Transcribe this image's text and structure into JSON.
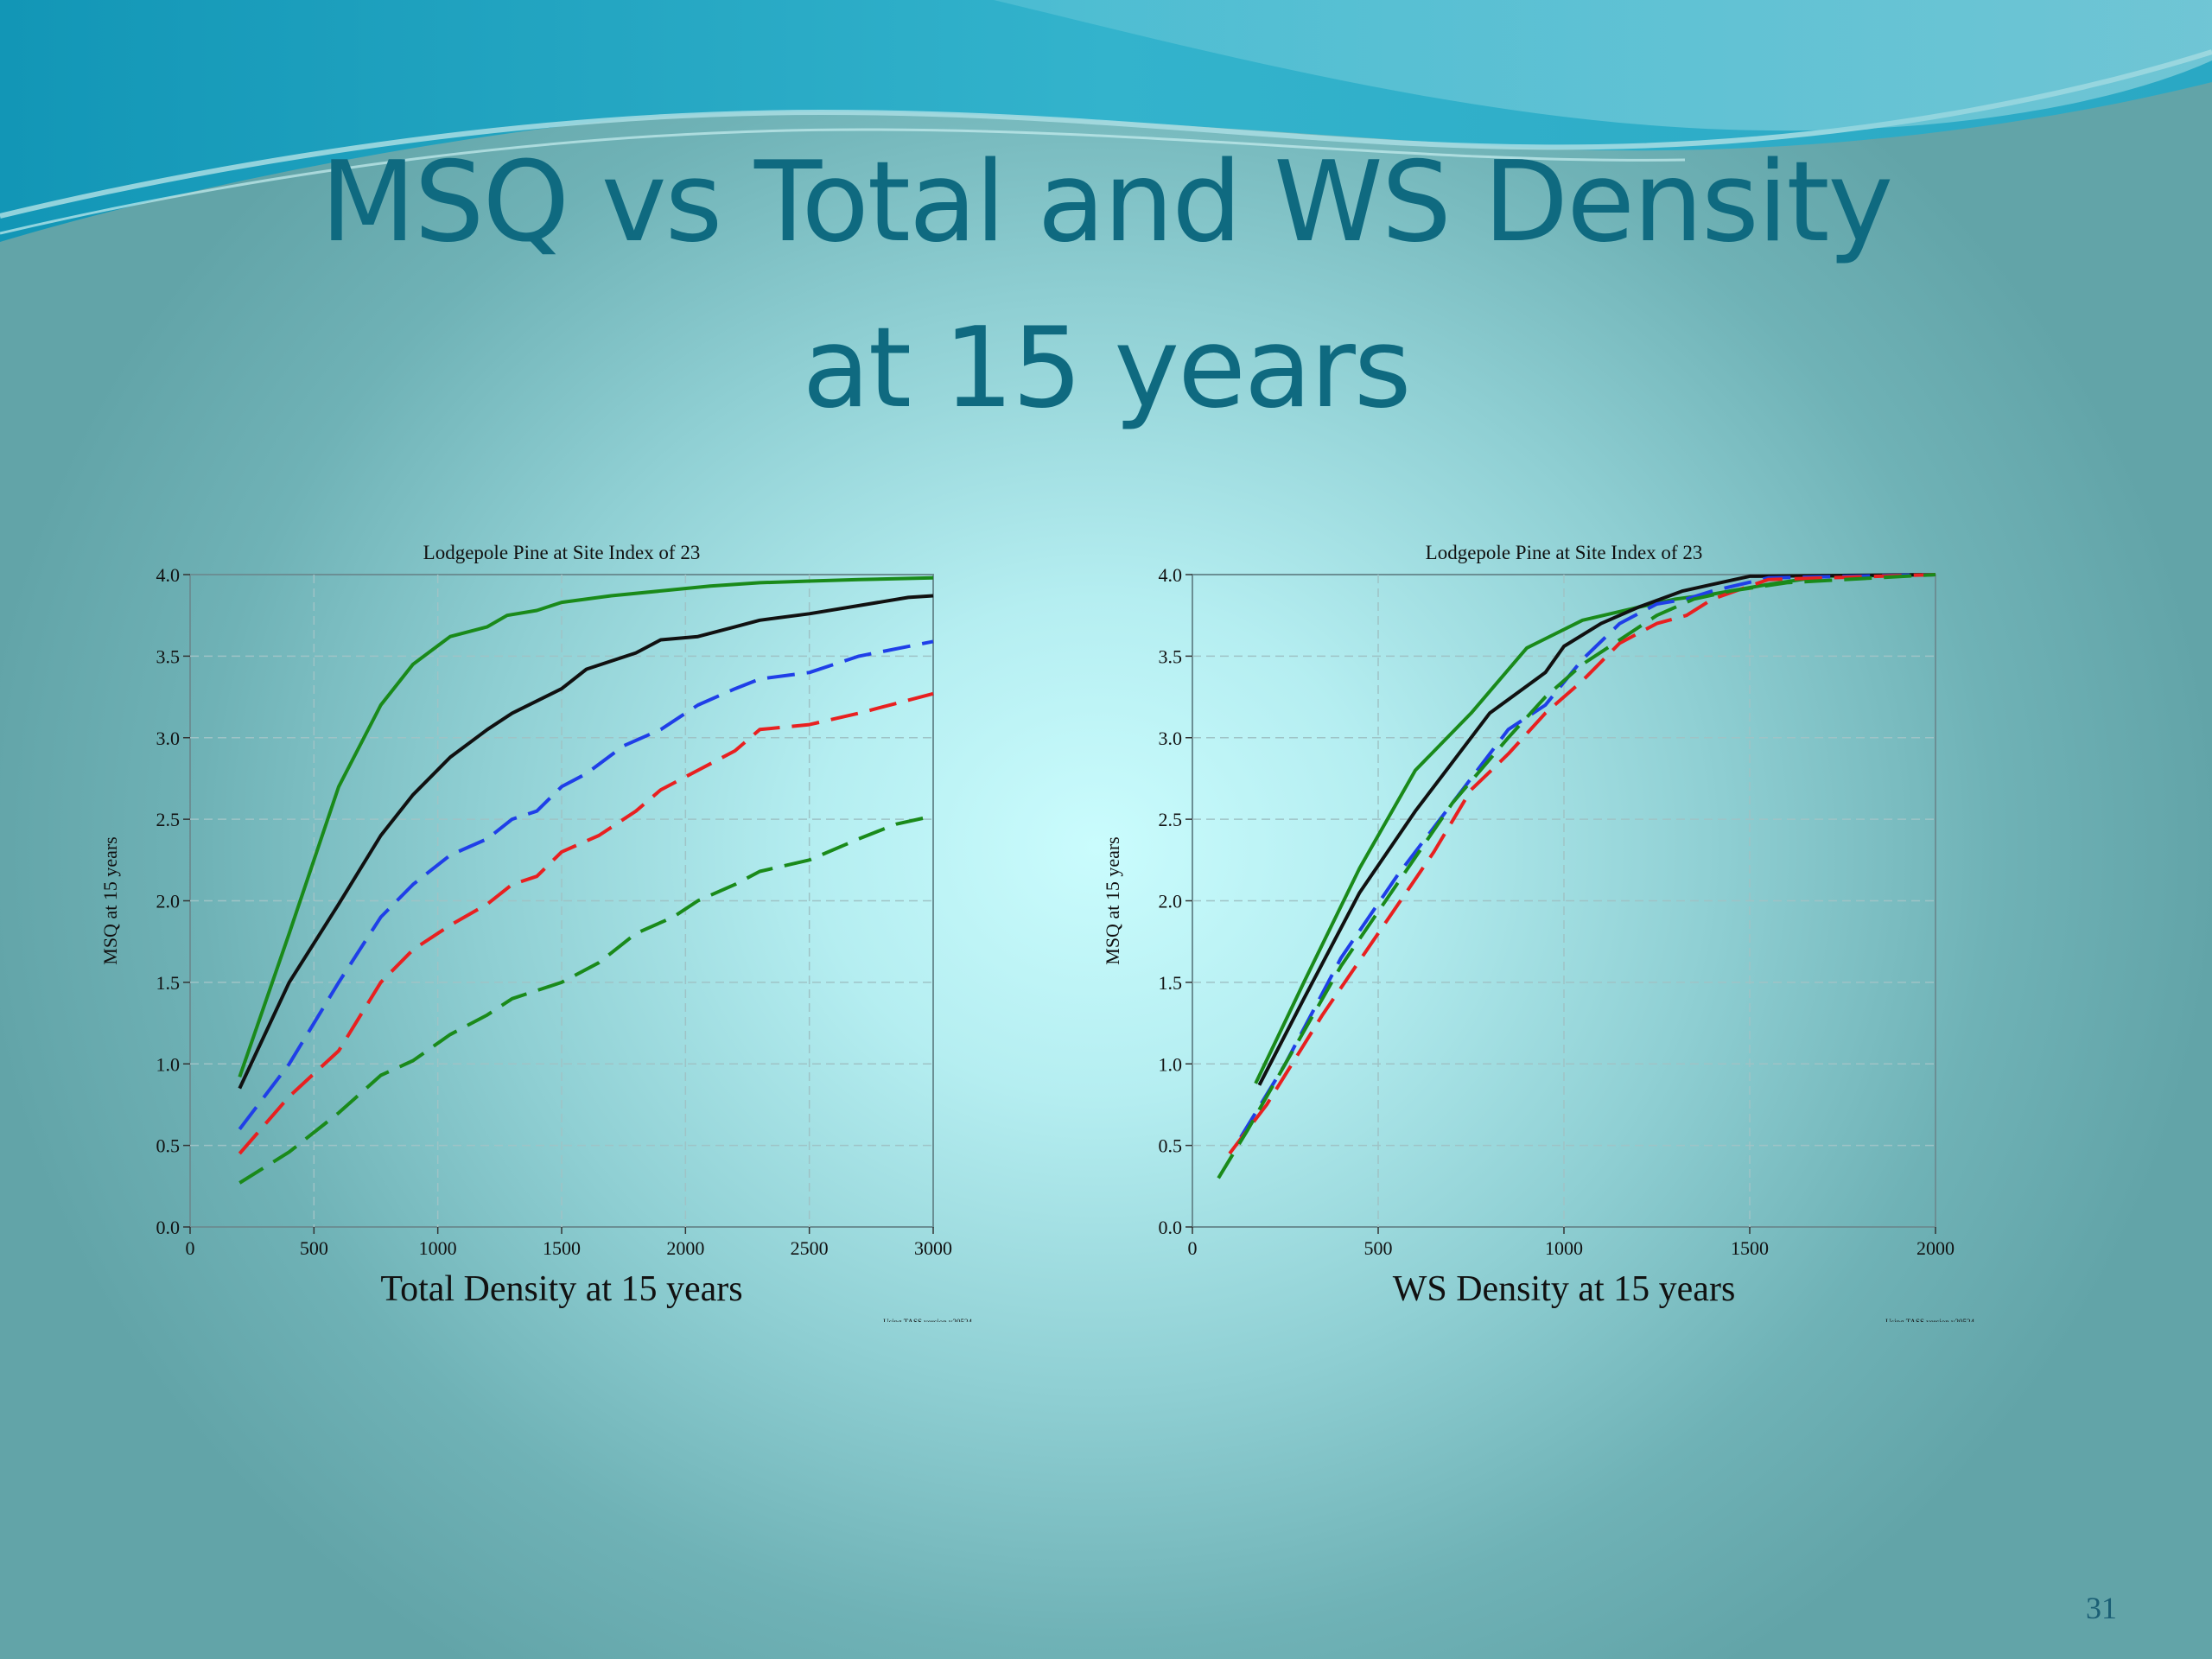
{
  "slide": {
    "title_line1": "MSQ vs Total and WS Density",
    "title_line2": "at 15 years",
    "page_number": "31"
  },
  "theme": {
    "title_color": "#0f6a80",
    "wave_colors": [
      "#1aa7c4",
      "#4fc0d6",
      "#9fd6da"
    ]
  },
  "chart_data": [
    {
      "type": "line",
      "title": "Lodgepole Pine at Site Index of 23",
      "xlabel": "Total Density at 15 years",
      "ylabel": "MSQ at 15 years",
      "footnote": "Using TASS version v20524",
      "xlim": [
        0,
        3000
      ],
      "ylim": [
        0,
        4.0
      ],
      "xticks": [
        "0",
        "500",
        "1000",
        "1500",
        "2000",
        "2500",
        "3000"
      ],
      "yticks": [
        "0.0",
        "0.5",
        "1.0",
        "1.5",
        "2.0",
        "2.5",
        "3.0",
        "3.5",
        "4.0"
      ],
      "grid": true,
      "series": [
        {
          "color": "#1a8a1a",
          "dash": "solid",
          "points": [
            [
              200,
              0.92
            ],
            [
              400,
              1.8
            ],
            [
              600,
              2.7
            ],
            [
              770,
              3.2
            ],
            [
              900,
              3.45
            ],
            [
              1050,
              3.62
            ],
            [
              1200,
              3.68
            ],
            [
              1280,
              3.75
            ],
            [
              1400,
              3.78
            ],
            [
              1500,
              3.83
            ],
            [
              1700,
              3.87
            ],
            [
              1900,
              3.9
            ],
            [
              2100,
              3.93
            ],
            [
              2300,
              3.95
            ],
            [
              2500,
              3.96
            ],
            [
              2700,
              3.97
            ],
            [
              3000,
              3.98
            ]
          ]
        },
        {
          "color": "#111111",
          "dash": "solid",
          "points": [
            [
              200,
              0.85
            ],
            [
              400,
              1.5
            ],
            [
              600,
              1.98
            ],
            [
              770,
              2.4
            ],
            [
              900,
              2.65
            ],
            [
              1050,
              2.88
            ],
            [
              1200,
              3.05
            ],
            [
              1300,
              3.15
            ],
            [
              1500,
              3.3
            ],
            [
              1600,
              3.42
            ],
            [
              1800,
              3.52
            ],
            [
              1900,
              3.6
            ],
            [
              2050,
              3.62
            ],
            [
              2200,
              3.68
            ],
            [
              2300,
              3.72
            ],
            [
              2500,
              3.76
            ],
            [
              2700,
              3.81
            ],
            [
              2900,
              3.86
            ],
            [
              3000,
              3.87
            ]
          ]
        },
        {
          "color": "#1f3fe8",
          "dash": "dash",
          "points": [
            [
              200,
              0.6
            ],
            [
              400,
              1.0
            ],
            [
              600,
              1.5
            ],
            [
              770,
              1.9
            ],
            [
              900,
              2.1
            ],
            [
              1050,
              2.28
            ],
            [
              1200,
              2.38
            ],
            [
              1300,
              2.5
            ],
            [
              1400,
              2.55
            ],
            [
              1500,
              2.7
            ],
            [
              1600,
              2.78
            ],
            [
              1750,
              2.95
            ],
            [
              1900,
              3.05
            ],
            [
              2050,
              3.2
            ],
            [
              2200,
              3.3
            ],
            [
              2300,
              3.36
            ],
            [
              2500,
              3.4
            ],
            [
              2700,
              3.5
            ],
            [
              3000,
              3.59
            ]
          ]
        },
        {
          "color": "#e82020",
          "dash": "dash",
          "points": [
            [
              200,
              0.45
            ],
            [
              400,
              0.8
            ],
            [
              600,
              1.08
            ],
            [
              770,
              1.5
            ],
            [
              900,
              1.7
            ],
            [
              1050,
              1.85
            ],
            [
              1200,
              1.98
            ],
            [
              1300,
              2.1
            ],
            [
              1400,
              2.15
            ],
            [
              1500,
              2.3
            ],
            [
              1650,
              2.4
            ],
            [
              1800,
              2.55
            ],
            [
              1900,
              2.68
            ],
            [
              2050,
              2.8
            ],
            [
              2200,
              2.92
            ],
            [
              2300,
              3.05
            ],
            [
              2500,
              3.08
            ],
            [
              2700,
              3.15
            ],
            [
              3000,
              3.27
            ]
          ]
        },
        {
          "color": "#1a8a1a",
          "dash": "dash",
          "points": [
            [
              200,
              0.27
            ],
            [
              400,
              0.46
            ],
            [
              600,
              0.7
            ],
            [
              770,
              0.93
            ],
            [
              900,
              1.02
            ],
            [
              1050,
              1.18
            ],
            [
              1200,
              1.3
            ],
            [
              1300,
              1.4
            ],
            [
              1500,
              1.5
            ],
            [
              1650,
              1.62
            ],
            [
              1800,
              1.8
            ],
            [
              1950,
              1.9
            ],
            [
              2050,
              2.0
            ],
            [
              2200,
              2.1
            ],
            [
              2300,
              2.18
            ],
            [
              2500,
              2.25
            ],
            [
              2700,
              2.38
            ],
            [
              2850,
              2.47
            ],
            [
              3000,
              2.52
            ]
          ]
        }
      ]
    },
    {
      "type": "line",
      "title": "Lodgepole Pine at Site Index of 23",
      "xlabel": "WS Density at 15 years",
      "ylabel": "MSQ at 15 years",
      "footnote": "Using TASS version v20524",
      "xlim": [
        0,
        2000
      ],
      "ylim": [
        0,
        4.0
      ],
      "xticks": [
        "0",
        "500",
        "1000",
        "1500",
        "2000"
      ],
      "yticks": [
        "0.0",
        "0.5",
        "1.0",
        "1.5",
        "2.0",
        "2.5",
        "3.0",
        "3.5",
        "4.0"
      ],
      "grid": true,
      "series": [
        {
          "color": "#1a8a1a",
          "dash": "solid",
          "points": [
            [
              170,
              0.88
            ],
            [
              300,
              1.5
            ],
            [
              450,
              2.2
            ],
            [
              600,
              2.8
            ],
            [
              750,
              3.15
            ],
            [
              900,
              3.55
            ],
            [
              1050,
              3.72
            ],
            [
              1200,
              3.8
            ],
            [
              1300,
              3.85
            ],
            [
              1400,
              3.88
            ],
            [
              1550,
              3.94
            ],
            [
              1700,
              3.99
            ],
            [
              2000,
              4.0
            ]
          ]
        },
        {
          "color": "#111111",
          "dash": "solid",
          "points": [
            [
              180,
              0.87
            ],
            [
              300,
              1.4
            ],
            [
              450,
              2.05
            ],
            [
              600,
              2.55
            ],
            [
              700,
              2.85
            ],
            [
              800,
              3.15
            ],
            [
              950,
              3.4
            ],
            [
              1000,
              3.56
            ],
            [
              1100,
              3.7
            ],
            [
              1200,
              3.8
            ],
            [
              1320,
              3.9
            ],
            [
              1400,
              3.94
            ],
            [
              1500,
              3.99
            ],
            [
              2000,
              4.0
            ]
          ]
        },
        {
          "color": "#1f3fe8",
          "dash": "dash",
          "points": [
            [
              130,
              0.55
            ],
            [
              250,
              1.0
            ],
            [
              400,
              1.65
            ],
            [
              550,
              2.15
            ],
            [
              650,
              2.45
            ],
            [
              750,
              2.75
            ],
            [
              850,
              3.05
            ],
            [
              950,
              3.2
            ],
            [
              1050,
              3.48
            ],
            [
              1150,
              3.7
            ],
            [
              1250,
              3.82
            ],
            [
              1330,
              3.85
            ],
            [
              1400,
              3.9
            ],
            [
              1550,
              3.98
            ],
            [
              2000,
              4.0
            ]
          ]
        },
        {
          "color": "#e82020",
          "dash": "dash",
          "points": [
            [
              100,
              0.45
            ],
            [
              200,
              0.75
            ],
            [
              350,
              1.3
            ],
            [
              500,
              1.8
            ],
            [
              650,
              2.3
            ],
            [
              750,
              2.68
            ],
            [
              850,
              2.9
            ],
            [
              950,
              3.15
            ],
            [
              1050,
              3.35
            ],
            [
              1150,
              3.58
            ],
            [
              1250,
              3.7
            ],
            [
              1330,
              3.75
            ],
            [
              1400,
              3.85
            ],
            [
              1550,
              3.97
            ],
            [
              2000,
              4.0
            ]
          ]
        },
        {
          "color": "#1a8a1a",
          "dash": "dash",
          "points": [
            [
              70,
              0.3
            ],
            [
              150,
              0.6
            ],
            [
              250,
              1.0
            ],
            [
              400,
              1.6
            ],
            [
              550,
              2.1
            ],
            [
              700,
              2.6
            ],
            [
              850,
              3.0
            ],
            [
              950,
              3.25
            ],
            [
              1050,
              3.45
            ],
            [
              1150,
              3.6
            ],
            [
              1250,
              3.75
            ],
            [
              1350,
              3.85
            ],
            [
              1450,
              3.9
            ],
            [
              1600,
              3.95
            ],
            [
              2000,
              4.0
            ]
          ]
        }
      ]
    }
  ]
}
